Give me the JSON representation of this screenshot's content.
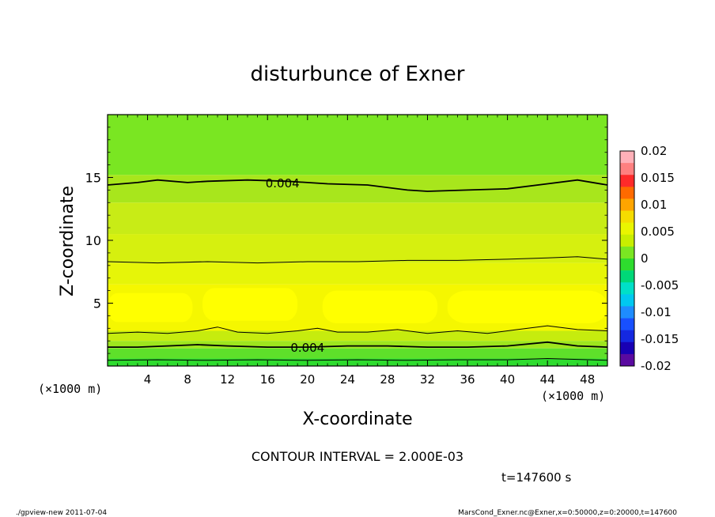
{
  "chart_data": {
    "type": "contour",
    "title": "disturbunce of Exner",
    "xlabel": "X-coordinate",
    "ylabel": "Z-coordinate",
    "x_unit_left": "(×1000 m)",
    "x_unit_right": "(×1000 m)",
    "xlim": [
      0,
      50
    ],
    "ylim": [
      0,
      20
    ],
    "x_ticks": [
      4,
      8,
      12,
      16,
      20,
      24,
      28,
      32,
      36,
      40,
      44,
      48
    ],
    "y_ticks": [
      5,
      10,
      15
    ],
    "contour_interval_text": "CONTOUR INTERVAL = 2.000E-03",
    "time_text": "t=147600 s",
    "contour_labels": [
      {
        "text": "0.004",
        "x": 17.5,
        "z": 14.6
      },
      {
        "text": "0.004",
        "x": 20.0,
        "z": 1.5
      }
    ],
    "contour_lines": [
      {
        "level": 0.004,
        "x": [
          0,
          3,
          5,
          8,
          10,
          14,
          18,
          22,
          26,
          30,
          32,
          36,
          40,
          44,
          47,
          50
        ],
        "z": [
          14.4,
          14.6,
          14.8,
          14.6,
          14.7,
          14.8,
          14.7,
          14.5,
          14.4,
          14.0,
          13.9,
          14.0,
          14.1,
          14.5,
          14.8,
          14.4
        ]
      },
      {
        "level": 0.006,
        "x": [
          0,
          5,
          10,
          15,
          20,
          25,
          30,
          35,
          40,
          44,
          47,
          50
        ],
        "z": [
          8.3,
          8.2,
          8.3,
          8.2,
          8.3,
          8.3,
          8.4,
          8.4,
          8.5,
          8.6,
          8.7,
          8.5
        ]
      },
      {
        "level": 0.006,
        "x": [
          0,
          3,
          6,
          9,
          11,
          13,
          16,
          19,
          21,
          23,
          26,
          29,
          32,
          35,
          38,
          41,
          44,
          47,
          50
        ],
        "z": [
          2.6,
          2.7,
          2.6,
          2.8,
          3.1,
          2.7,
          2.6,
          2.8,
          3.0,
          2.7,
          2.7,
          2.9,
          2.6,
          2.8,
          2.6,
          2.9,
          3.2,
          2.9,
          2.8
        ]
      },
      {
        "level": 0.004,
        "x": [
          0,
          3,
          6,
          9,
          12,
          16,
          20,
          24,
          28,
          32,
          36,
          40,
          44,
          47,
          50
        ],
        "z": [
          1.5,
          1.5,
          1.6,
          1.7,
          1.6,
          1.5,
          1.5,
          1.6,
          1.6,
          1.5,
          1.5,
          1.6,
          1.9,
          1.6,
          1.5
        ]
      },
      {
        "level": 0.002,
        "x": [
          0,
          5,
          10,
          15,
          20,
          25,
          30,
          35,
          40,
          44,
          50
        ],
        "z": [
          0.45,
          0.5,
          0.45,
          0.5,
          0.45,
          0.5,
          0.45,
          0.5,
          0.5,
          0.6,
          0.45
        ]
      }
    ],
    "color_bands": [
      {
        "z0": 15.2,
        "z1": 20.0,
        "color": "#7ae622"
      },
      {
        "z0": 13.0,
        "z1": 15.2,
        "color": "#a8e61c"
      },
      {
        "z0": 10.5,
        "z1": 13.0,
        "color": "#c8ec16"
      },
      {
        "z0": 8.2,
        "z1": 10.5,
        "color": "#d6f00f"
      },
      {
        "z0": 6.5,
        "z1": 8.2,
        "color": "#e6f508"
      },
      {
        "z0": 2.8,
        "z1": 6.5,
        "color": "#f5f700"
      },
      {
        "z0": 2.0,
        "z1": 2.8,
        "color": "#c6ec0e"
      },
      {
        "z0": 1.4,
        "z1": 2.0,
        "color": "#9ee61e"
      },
      {
        "z0": 0.6,
        "z1": 1.4,
        "color": "#5ee02a"
      },
      {
        "z0": 0.0,
        "z1": 0.6,
        "color": "#2edc2e"
      }
    ],
    "yellow_blobs": [
      {
        "x0": 0.0,
        "x1": 8.5,
        "z0": 3.5,
        "z1": 5.8
      },
      {
        "x0": 9.5,
        "x1": 19.0,
        "z0": 3.6,
        "z1": 6.2
      },
      {
        "x0": 21.5,
        "x1": 33.0,
        "z0": 3.4,
        "z1": 6.0
      },
      {
        "x0": 34.0,
        "x1": 50.0,
        "z0": 3.4,
        "z1": 6.0
      }
    ],
    "colorbar": {
      "labels": [
        "0.02",
        "0.015",
        "0.01",
        "0.005",
        "0",
        "-0.005",
        "-0.01",
        "-0.015",
        "-0.02"
      ],
      "colors": [
        "#ffb0b8",
        "#ff8080",
        "#ff2a2a",
        "#ff6a00",
        "#ffa500",
        "#f5dc00",
        "#eaf500",
        "#c8ee00",
        "#7ae622",
        "#2edc2e",
        "#00d878",
        "#00e0c8",
        "#00c8f0",
        "#1e8cff",
        "#1850ff",
        "#1428e0",
        "#1800b4",
        "#5a0aa0"
      ]
    }
  },
  "footer": {
    "left": "./gpview-new   2011-07-04",
    "right": "MarsCond_Exner.nc@Exner,x=0:50000,z=0:20000,t=147600"
  }
}
